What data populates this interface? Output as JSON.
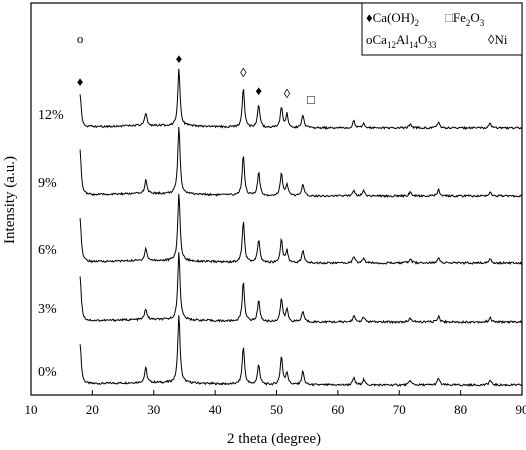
{
  "chart_data": {
    "type": "line",
    "xlabel": "2 theta (degree)",
    "ylabel": "Intensity (a.u.)",
    "xlim": [
      10,
      90
    ],
    "x_ticks": [
      "10",
      "20",
      "30",
      "40",
      "50",
      "60",
      "70",
      "80",
      "90"
    ],
    "x_range": [
      18,
      90
    ],
    "series": [
      {
        "name": "0%"
      },
      {
        "name": "3%"
      },
      {
        "name": "6%"
      },
      {
        "name": "9%"
      },
      {
        "name": "12%"
      }
    ],
    "peaks": [
      {
        "x": 18.0,
        "h": [
          0.6,
          0.66,
          0.66,
          0.66,
          0.48
        ]
      },
      {
        "x": 28.7,
        "h": [
          0.22,
          0.16,
          0.18,
          0.2,
          0.18
        ]
      },
      {
        "x": 34.1,
        "h": [
          1.0,
          1.0,
          1.0,
          1.0,
          0.84
        ]
      },
      {
        "x": 44.6,
        "h": [
          0.56,
          0.58,
          0.6,
          0.6,
          0.58
        ]
      },
      {
        "x": 47.1,
        "h": [
          0.3,
          0.32,
          0.34,
          0.34,
          0.34
        ]
      },
      {
        "x": 50.8,
        "h": [
          0.42,
          0.34,
          0.34,
          0.34,
          0.3
        ]
      },
      {
        "x": 51.7,
        "h": [
          0.18,
          0.18,
          0.18,
          0.16,
          0.2
        ]
      },
      {
        "x": 54.3,
        "h": [
          0.2,
          0.16,
          0.18,
          0.16,
          0.2
        ]
      },
      {
        "x": 62.6,
        "h": [
          0.1,
          0.09,
          0.09,
          0.09,
          0.1
        ]
      },
      {
        "x": 64.2,
        "h": [
          0.08,
          0.07,
          0.07,
          0.08,
          0.08
        ]
      },
      {
        "x": 71.8,
        "h": [
          0.07,
          0.06,
          0.06,
          0.06,
          0.06
        ]
      },
      {
        "x": 76.4,
        "h": [
          0.1,
          0.09,
          0.09,
          0.09,
          0.09
        ]
      },
      {
        "x": 84.8,
        "h": [
          0.07,
          0.06,
          0.06,
          0.06,
          0.06
        ]
      }
    ],
    "legend": {
      "placement": "top-right",
      "entries": [
        {
          "symbol": "♦",
          "text": "Ca(OH)",
          "sub": "2"
        },
        {
          "symbol": "□",
          "text": "Fe",
          "sub": "2",
          "text2": "O",
          "sub2": "3"
        },
        {
          "symbol": "ο",
          "text": "Ca",
          "sub": "12",
          "text2": "Al",
          "sub2": "14",
          "text3": "O",
          "sub3": "33"
        },
        {
          "symbol": "◊",
          "text": "Ni"
        }
      ]
    },
    "annotations": [
      {
        "symbol": "ο",
        "x": 18.0
      },
      {
        "symbol": "♦",
        "x": 18.0
      },
      {
        "symbol": "♦",
        "x": 34.1
      },
      {
        "symbol": "◊",
        "x": 44.6
      },
      {
        "symbol": "♦",
        "x": 47.1
      },
      {
        "symbol": "◊",
        "x": 51.7
      },
      {
        "symbol": "□",
        "x": 54.3
      }
    ],
    "grid": false
  }
}
